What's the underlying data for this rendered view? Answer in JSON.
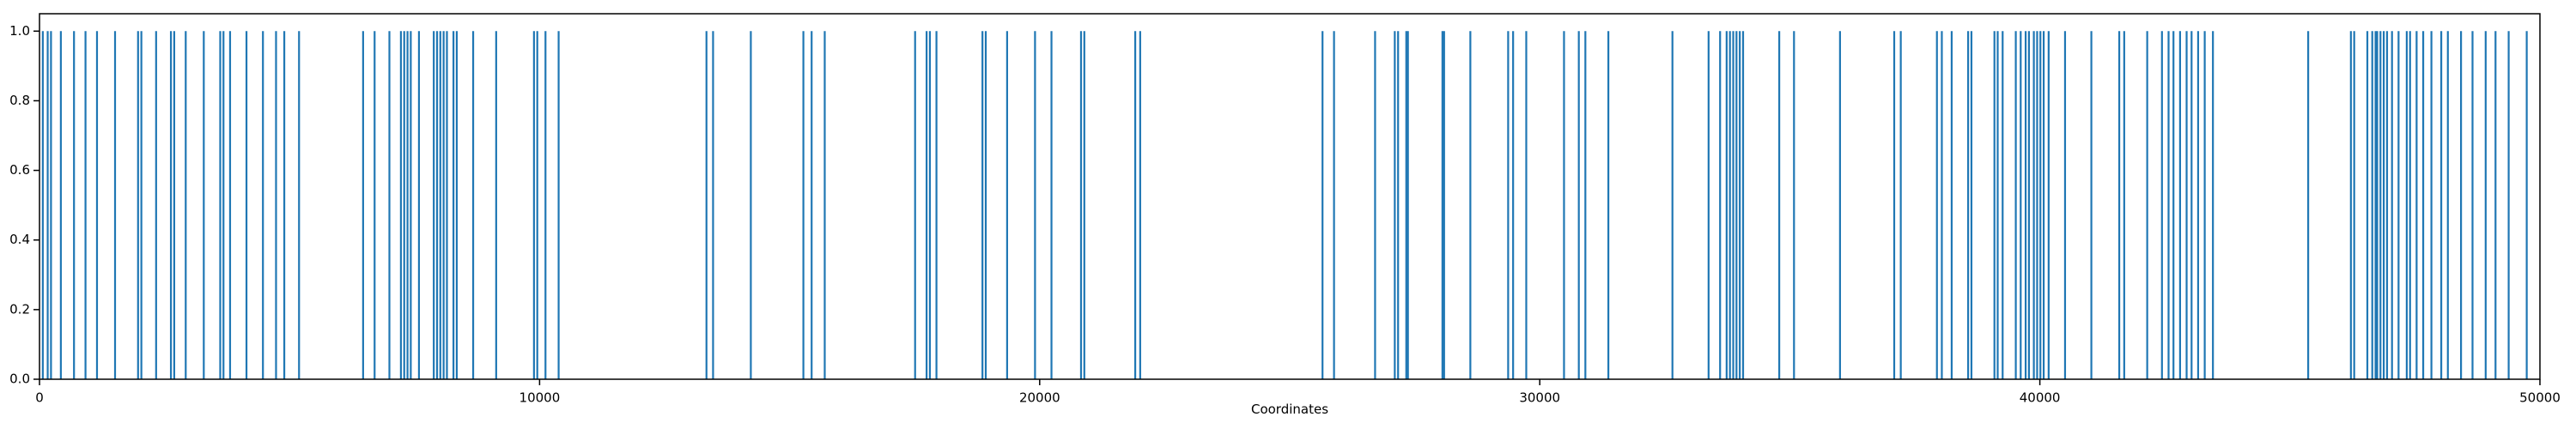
{
  "chart_data": {
    "type": "vlines",
    "xlabel": "Coordinates",
    "color": "#1f77b4",
    "xlim": [
      0,
      50000
    ],
    "ylim": [
      0,
      1.05
    ],
    "xticks": [
      0,
      10000,
      20000,
      30000,
      40000,
      50000
    ],
    "yticks": [
      {
        "value": 0,
        "label": "0.0"
      },
      0.2,
      0.4,
      0.6,
      0.8,
      {
        "value": 1,
        "label": "1.0"
      }
    ],
    "x": [
      66,
      164,
      230,
      427,
      690,
      920,
      1150,
      1511,
      1971,
      2037,
      2332,
      2628,
      2694,
      2924,
      3285,
      3614,
      3679,
      3811,
      4139,
      4468,
      4730,
      4895,
      5190,
      6471,
      6701,
      6997,
      7227,
      7293,
      7359,
      7424,
      7588,
      7884,
      7950,
      8015,
      8081,
      8147,
      8278,
      8344,
      8672,
      9132,
      9888,
      9954,
      10118,
      10381,
      13337,
      13469,
      14224,
      15275,
      15440,
      15702,
      17509,
      17739,
      17805,
      17936,
      18856,
      18922,
      19349,
      19907,
      20236,
      20827,
      20893,
      21911,
      22010,
      25656,
      25886,
      26707,
      27101,
      27167,
      27331,
      27364,
      28054,
      28087,
      28612,
      29368,
      29467,
      29730,
      30485,
      30781,
      30912,
      31372,
      32653,
      33376,
      33606,
      33737,
      33803,
      33869,
      33934,
      34000,
      34066,
      34789,
      35084,
      36004,
      37088,
      37219,
      37942,
      38040,
      38237,
      38566,
      38632,
      39092,
      39157,
      39256,
      39519,
      39617,
      39716,
      39782,
      39880,
      39946,
      40011,
      40077,
      40176,
      40504,
      41030,
      41588,
      41687,
      42147,
      42442,
      42574,
      42672,
      42804,
      42935,
      43034,
      43165,
      43297,
      43461,
      45366,
      46220,
      46286,
      46549,
      46647,
      46713,
      46746,
      46811,
      46877,
      46943,
      47042,
      47173,
      47337,
      47403,
      47534,
      47666,
      47830,
      48027,
      48159,
      48422,
      48652,
      48915,
      49112,
      49375,
      49736
    ],
    "values": [
      1,
      1,
      1,
      1,
      1,
      1,
      1,
      1,
      1,
      1,
      1,
      1,
      1,
      1,
      1,
      1,
      1,
      1,
      1,
      1,
      1,
      1,
      1,
      1,
      1,
      1,
      1,
      1,
      1,
      1,
      1,
      1,
      1,
      1,
      1,
      1,
      1,
      1,
      1,
      1,
      1,
      1,
      1,
      1,
      1,
      1,
      1,
      1,
      1,
      1,
      1,
      1,
      1,
      1,
      1,
      1,
      1,
      1,
      1,
      1,
      1,
      1,
      1,
      1,
      1,
      1,
      1,
      1,
      1,
      1,
      1,
      1,
      1,
      1,
      1,
      1,
      1,
      1,
      1,
      1,
      1,
      1,
      1,
      1,
      1,
      1,
      1,
      1,
      1,
      1,
      1,
      1,
      1,
      1,
      1,
      1,
      1,
      1,
      1,
      1,
      1,
      1,
      1,
      1,
      1,
      1,
      1,
      1,
      1,
      1,
      1,
      1,
      1,
      1,
      1,
      1,
      1,
      1,
      1,
      1,
      1,
      1,
      1,
      1,
      1,
      1,
      1,
      1,
      1,
      1,
      1,
      1,
      1,
      1,
      1,
      1,
      1,
      1,
      1,
      1,
      1,
      1,
      1,
      1,
      1,
      1,
      1,
      1,
      1,
      1
    ]
  }
}
